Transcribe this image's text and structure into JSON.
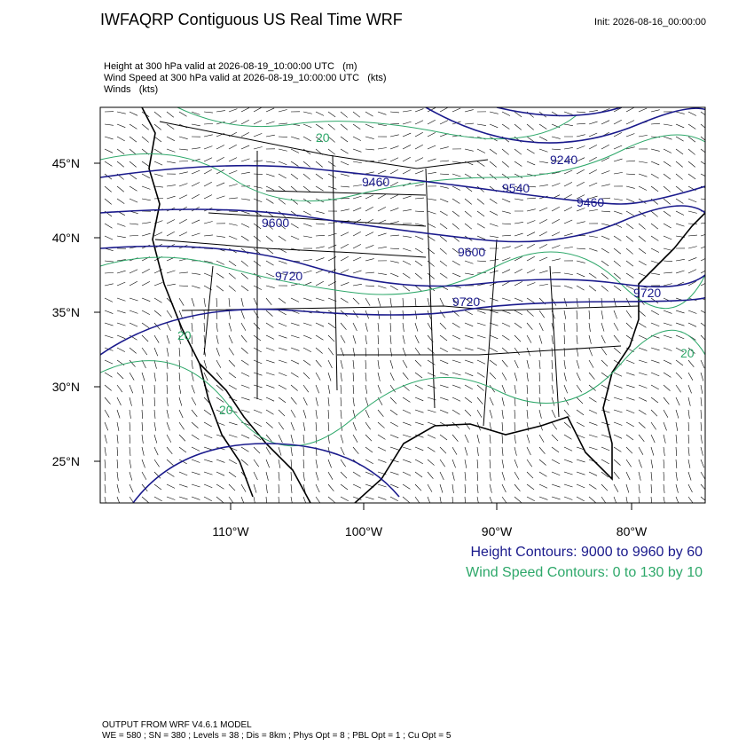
{
  "header": {
    "title": "IWFAQRP Contiguous US Real Time WRF",
    "init": "Init: 2026-08-16_00:00:00"
  },
  "fields": [
    "Height at 300 hPa valid at 2026-08-19_10:00:00 UTC   (m)",
    "Wind Speed at 300 hPa valid at 2026-08-19_10:00:00 UTC   (kts)",
    "Winds   (kts)"
  ],
  "map": {
    "lat_labels": [
      "45°N",
      "40°N",
      "35°N",
      "30°N",
      "25°N"
    ],
    "lon_labels": [
      "110°W",
      "100°W",
      "90°W",
      "80°W"
    ],
    "height_labels": [
      "9460",
      "9600",
      "9720",
      "9240",
      "9460",
      "9540",
      "9600",
      "9720",
      "9720"
    ],
    "wind_labels": [
      "20",
      "20",
      "20",
      "20"
    ]
  },
  "legend": {
    "height": "Height Contours: 9000 to 9960 by 60",
    "wind": "Wind Speed Contours: 0 to 130 by 10"
  },
  "footer": {
    "line1": "OUTPUT FROM WRF V4.6.1 MODEL",
    "line2": "WE = 580 ; SN = 380 ; Levels = 38 ; Dis = 8km ; Phys Opt = 8 ; PBL Opt = 1 ; Cu Opt = 5"
  }
}
